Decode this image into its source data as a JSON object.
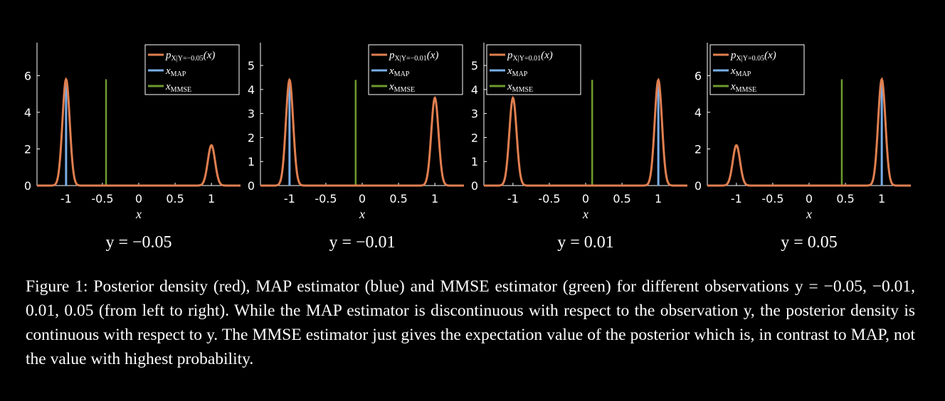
{
  "colors": {
    "posterior": "#e07f50",
    "map": "#79aee8",
    "mmse": "#6f9a2f",
    "background": "#000000",
    "foreground": "#ffffff"
  },
  "legend": {
    "posterior": "p",
    "map": "x",
    "mmse": "x",
    "map_sub": "MAP",
    "mmse_sub": "MMSE"
  },
  "chart_data": [
    {
      "type": "line",
      "title": "y = −0.05",
      "xlabel": "x",
      "legend_position": "top-right",
      "posterior_label": "p_{X|Y=−0.05}(x)",
      "posterior_sub": "X|Y=−0.05",
      "xlim": [
        -1.4,
        1.4
      ],
      "ylim": [
        0,
        7.8
      ],
      "xticks": [
        -1,
        -0.5,
        0,
        0.5,
        1
      ],
      "xtick_labels": [
        "-1",
        "-0.5",
        "0",
        "0.5",
        "1"
      ],
      "yticks": [
        0,
        2,
        4,
        6
      ],
      "ytick_labels": [
        "0",
        "2",
        "4",
        "6"
      ],
      "posterior_peaks": [
        {
          "x": -1,
          "height": 5.8
        },
        {
          "x": 1,
          "height": 2.2
        }
      ],
      "peak_sigma": 0.05,
      "map_x": -1,
      "map_height": 5.8,
      "mmse_x": -0.45,
      "mmse_height": 5.8
    },
    {
      "type": "line",
      "title": "y = −0.01",
      "xlabel": "x",
      "legend_position": "top-right",
      "posterior_label": "p_{X|Y=−0.01}(x)",
      "posterior_sub": "X|Y=−0.01",
      "xlim": [
        -1.4,
        1.4
      ],
      "ylim": [
        0,
        5.95
      ],
      "xticks": [
        -1,
        -0.5,
        0,
        0.5,
        1
      ],
      "xtick_labels": [
        "-1",
        "-0.5",
        "0",
        "0.5",
        "1"
      ],
      "yticks": [
        0,
        1,
        2,
        3,
        4,
        5
      ],
      "ytick_labels": [
        "0",
        "1",
        "2",
        "3",
        "4",
        "5"
      ],
      "posterior_peaks": [
        {
          "x": -1,
          "height": 4.4
        },
        {
          "x": 1,
          "height": 3.65
        }
      ],
      "peak_sigma": 0.05,
      "map_x": -1,
      "map_height": 4.4,
      "mmse_x": -0.09,
      "mmse_height": 4.4
    },
    {
      "type": "line",
      "title": "y = 0.01",
      "xlabel": "x",
      "legend_position": "top-left",
      "posterior_label": "p_{X|Y=0.01}(x)",
      "posterior_sub": "X|Y=0.01",
      "xlim": [
        -1.4,
        1.4
      ],
      "ylim": [
        0,
        5.95
      ],
      "xticks": [
        -1,
        -0.5,
        0,
        0.5,
        1
      ],
      "xtick_labels": [
        "-1",
        "-0.5",
        "0",
        "0.5",
        "1"
      ],
      "yticks": [
        0,
        1,
        2,
        3,
        4,
        5
      ],
      "ytick_labels": [
        "0",
        "1",
        "2",
        "3",
        "4",
        "5"
      ],
      "posterior_peaks": [
        {
          "x": -1,
          "height": 3.65
        },
        {
          "x": 1,
          "height": 4.4
        }
      ],
      "peak_sigma": 0.05,
      "map_x": 1,
      "map_height": 4.4,
      "mmse_x": 0.09,
      "mmse_height": 4.4
    },
    {
      "type": "line",
      "title": "y = 0.05",
      "xlabel": "x",
      "legend_position": "top-left",
      "posterior_label": "p_{X|Y=0.05}(x)",
      "posterior_sub": "X|Y=0.05",
      "xlim": [
        -1.4,
        1.4
      ],
      "ylim": [
        0,
        7.8
      ],
      "xticks": [
        -1,
        -0.5,
        0,
        0.5,
        1
      ],
      "xtick_labels": [
        "-1",
        "-0.5",
        "0",
        "0.5",
        "1"
      ],
      "yticks": [
        0,
        2,
        4,
        6
      ],
      "ytick_labels": [
        "0",
        "2",
        "4",
        "6"
      ],
      "posterior_peaks": [
        {
          "x": -1,
          "height": 2.2
        },
        {
          "x": 1,
          "height": 5.8
        }
      ],
      "peak_sigma": 0.05,
      "map_x": 1,
      "map_height": 5.8,
      "mmse_x": 0.45,
      "mmse_height": 5.8
    }
  ],
  "caption": "Figure 1: Posterior density (red), MAP estimator (blue) and MMSE estimator (green) for different observations y = −0.05, −0.01, 0.01, 0.05 (from left to right). While the MAP estimator is discontinuous with respect to the observation y, the posterior density is continuous with respect to y. The MMSE estimator just gives the expectation value of the posterior which is, in contrast to MAP, not the value with highest probability."
}
